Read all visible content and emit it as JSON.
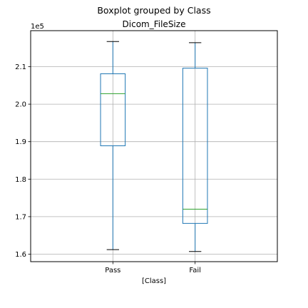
{
  "chart_data": {
    "type": "boxplot",
    "suptitle": "Boxplot grouped by Class",
    "title": "Dicom_FileSize",
    "xlabel": "[Class]",
    "ylabel": "",
    "offset_label": "1e5",
    "categories": [
      "Pass",
      "Fail"
    ],
    "boxes": [
      {
        "category": "Pass",
        "whisker_low": 1.612,
        "q1": 1.889,
        "median": 2.028,
        "q3": 2.081,
        "whisker_high": 2.167
      },
      {
        "category": "Fail",
        "whisker_low": 1.607,
        "q1": 1.682,
        "median": 1.72,
        "q3": 2.096,
        "whisker_high": 2.164
      }
    ],
    "ylim": [
      1.58,
      2.196
    ],
    "yticks": [
      1.6,
      1.7,
      1.8,
      1.9,
      2.0,
      2.1
    ],
    "ytick_labels": [
      "1.6",
      "1.7",
      "1.8",
      "1.9",
      "2.0",
      "2.1"
    ],
    "grid": true,
    "colors": {
      "box": "#1f77b4",
      "median": "#2ca02c",
      "whisker": "#1f77b4",
      "cap": "#000000",
      "grid": "#b0b0b0",
      "frame": "#000000"
    }
  }
}
